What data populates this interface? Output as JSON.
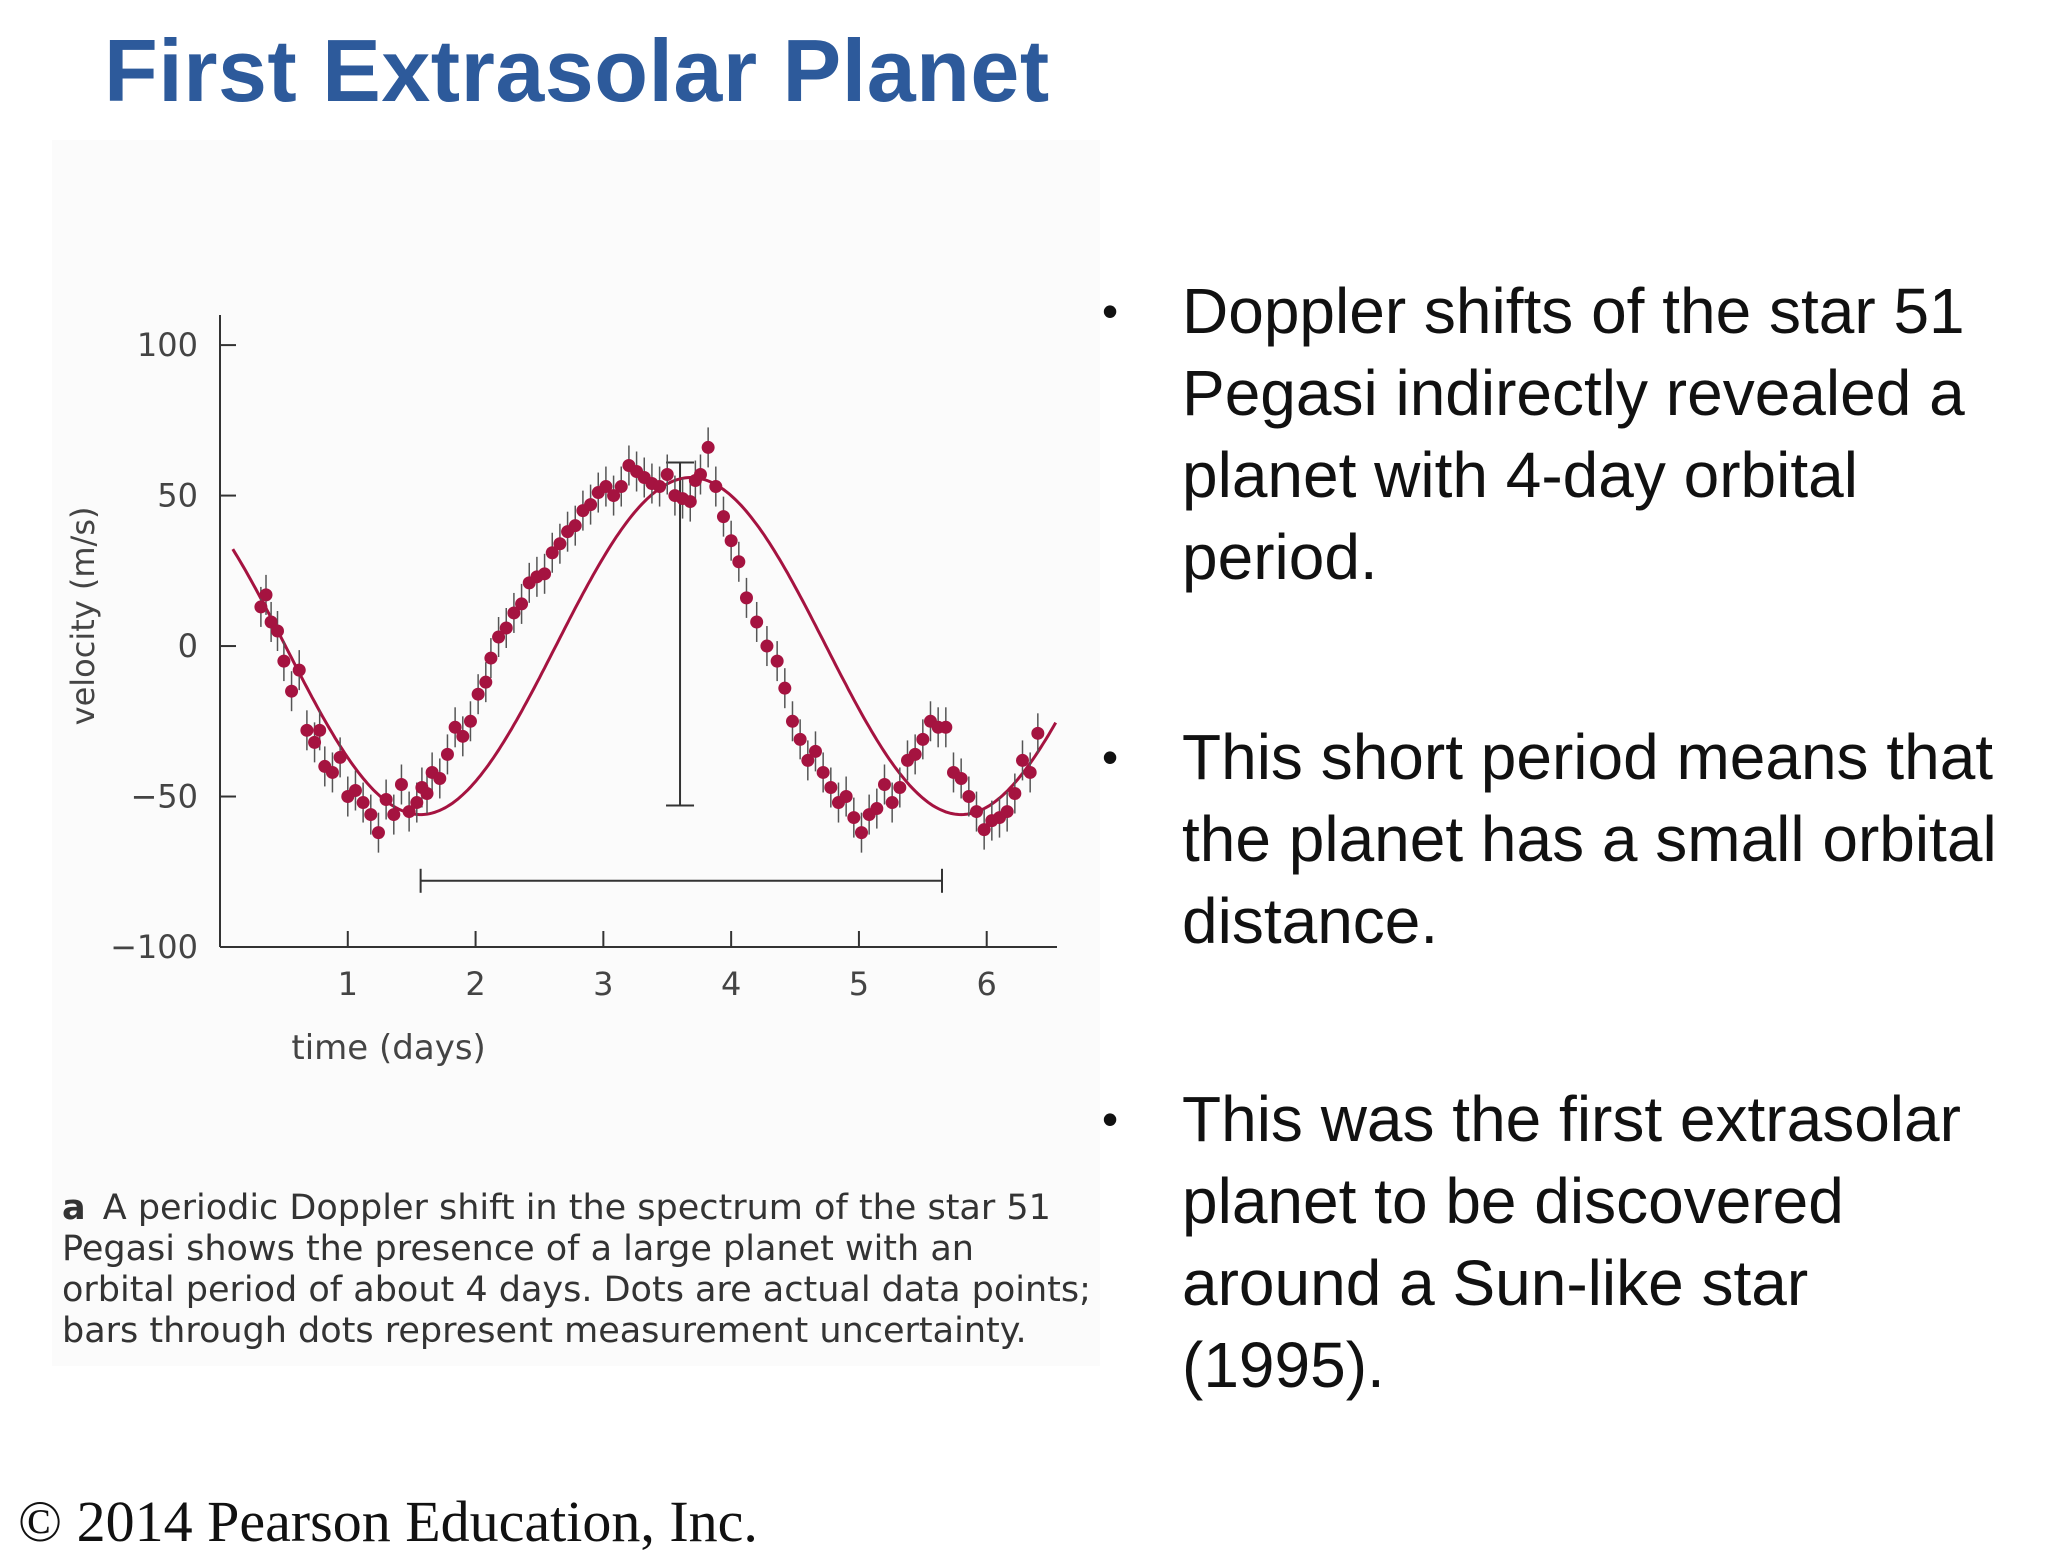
{
  "slide": {
    "title": "First Extrasolar Planet",
    "copyright": "© 2014 Pearson Education, Inc."
  },
  "caption": {
    "tag": "a",
    "text": "A periodic Doppler shift in the spectrum of the star 51 Pegasi shows the presence of a large planet with an orbital period of about 4 days. Dots are actual data points; bars through dots represent measurement uncertainty."
  },
  "bullets": [
    {
      "marker": "•",
      "text": "Doppler shifts of the star 51 Pegasi indirectly revealed a planet with 4-day orbital period."
    },
    {
      "marker": "•",
      "text": "This short period means that the planet has a small orbital distance."
    },
    {
      "marker": "•",
      "text": "This was the first extrasolar planet to be discovered around a Sun-like star (1995)."
    }
  ],
  "chart_data": {
    "type": "scatter",
    "title": "",
    "xlabel": "time (days)",
    "ylabel": "velocity (m/s)",
    "xlim": [
      0,
      6.55
    ],
    "ylim": [
      -100,
      110
    ],
    "x_ticks": [
      1,
      2,
      3,
      4,
      5,
      6
    ],
    "y_ticks": [
      100,
      50,
      0,
      -50,
      -100
    ],
    "x_tick_labels": [
      "1",
      "2",
      "3",
      "4",
      "5",
      "6"
    ],
    "y_tick_labels": [
      "100",
      "50",
      "0",
      "−50",
      "−100"
    ],
    "grid": false,
    "point_color": "#a51340",
    "curve_color": "#a51340",
    "annotation_color": "#333333",
    "fit": {
      "amplitude": 56,
      "period_days": 4.23,
      "phase_days": 1.57,
      "x_range": [
        0.1,
        6.55
      ]
    },
    "period_bar": {
      "x_start": 1.57,
      "x_end": 5.65,
      "y": -78
    },
    "amplitude_bar": {
      "x": 3.6,
      "y_top": 61,
      "y_bottom": -53
    },
    "points": {
      "x": [
        0.32,
        0.36,
        0.4,
        0.45,
        0.5,
        0.56,
        0.62,
        0.68,
        0.74,
        0.78,
        0.82,
        0.88,
        0.94,
        1.0,
        1.06,
        1.12,
        1.18,
        1.24,
        1.3,
        1.36,
        1.42,
        1.48,
        1.54,
        1.58,
        1.62,
        1.66,
        1.72,
        1.78,
        1.84,
        1.9,
        1.96,
        2.02,
        2.08,
        2.12,
        2.18,
        2.24,
        2.3,
        2.36,
        2.42,
        2.48,
        2.54,
        2.6,
        2.66,
        2.72,
        2.78,
        2.84,
        2.9,
        2.96,
        3.02,
        3.08,
        3.14,
        3.2,
        3.26,
        3.32,
        3.38,
        3.44,
        3.5,
        3.56,
        3.62,
        3.68,
        3.72,
        3.76,
        3.82,
        3.88,
        3.94,
        4.0,
        4.06,
        4.12,
        4.2,
        4.28,
        4.36,
        4.42,
        4.48,
        4.54,
        4.6,
        4.66,
        4.72,
        4.78,
        4.84,
        4.9,
        4.96,
        5.02,
        5.08,
        5.14,
        5.2,
        5.26,
        5.32,
        5.38,
        5.44,
        5.5,
        5.56,
        5.62,
        5.68,
        5.74,
        5.8,
        5.86,
        5.92,
        5.98,
        6.04,
        6.1,
        6.16,
        6.22,
        6.28,
        6.34,
        6.4
      ],
      "y": [
        13,
        17,
        8,
        5,
        -5,
        -15,
        -8,
        -28,
        -32,
        -28,
        -40,
        -42,
        -37,
        -50,
        -48,
        -52,
        -56,
        -62,
        -51,
        -56,
        -46,
        -55,
        -52,
        -47,
        -49,
        -42,
        -44,
        -36,
        -27,
        -30,
        -25,
        -16,
        -12,
        -4,
        3,
        6,
        11,
        14,
        21,
        23,
        24,
        31,
        34,
        38,
        40,
        45,
        47,
        51,
        53,
        50,
        53,
        60,
        58,
        56,
        54,
        53,
        57,
        50,
        49,
        48,
        55,
        57,
        66,
        53,
        43,
        35,
        28,
        16,
        8,
        0,
        -5,
        -14,
        -25,
        -31,
        -38,
        -35,
        -42,
        -47,
        -52,
        -50,
        -57,
        -62,
        -56,
        -54,
        -46,
        -52,
        -47,
        -38,
        -36,
        -31,
        -25,
        -27,
        -27,
        -42,
        -44,
        -50,
        -55,
        -61,
        -58,
        -57,
        -55,
        -49,
        -38,
        -42,
        -29
      ]
    }
  }
}
